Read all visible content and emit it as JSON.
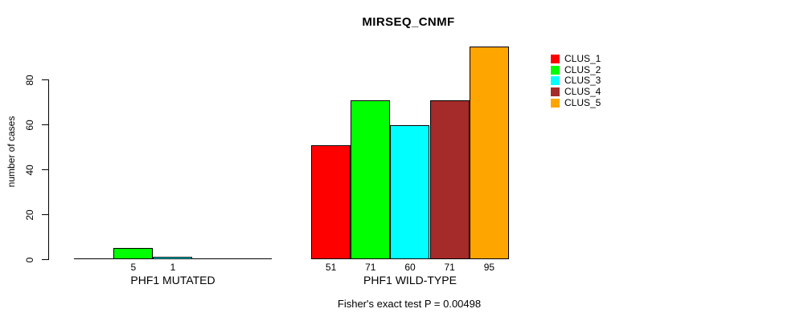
{
  "title": "MIRSEQ_CNMF",
  "footer": "Fisher's exact test P = 0.00498",
  "y_axis": {
    "label": "number of cases",
    "ticks": [
      0,
      20,
      40,
      60,
      80
    ]
  },
  "legend": {
    "entries": [
      {
        "label": "CLUS_1",
        "color": "#FF0000"
      },
      {
        "label": "CLUS_2",
        "color": "#00FF00"
      },
      {
        "label": "CLUS_3",
        "color": "#00FFFF"
      },
      {
        "label": "CLUS_4",
        "color": "#A52A2A"
      },
      {
        "label": "CLUS_5",
        "color": "#FFA500"
      }
    ]
  },
  "chart_data": {
    "type": "bar",
    "title": "MIRSEQ_CNMF",
    "xlabel": "",
    "ylabel": "number of cases",
    "categories": [
      "PHF1 MUTATED",
      "PHF1 WILD-TYPE"
    ],
    "series": [
      {
        "name": "CLUS_1",
        "color": "#FF0000",
        "values": [
          0,
          51
        ]
      },
      {
        "name": "CLUS_2",
        "color": "#00FF00",
        "values": [
          5,
          71
        ]
      },
      {
        "name": "CLUS_3",
        "color": "#00FFFF",
        "values": [
          1,
          60
        ]
      },
      {
        "name": "CLUS_4",
        "color": "#A52A2A",
        "values": [
          0,
          71
        ]
      },
      {
        "name": "CLUS_5",
        "color": "#FFA500",
        "values": [
          0,
          95
        ]
      }
    ],
    "bar_value_labels": {
      "PHF1 MUTATED": [
        null,
        5,
        1,
        null,
        null
      ],
      "PHF1 WILD-TYPE": [
        51,
        71,
        60,
        71,
        95
      ]
    },
    "ylim": [
      0,
      96
    ],
    "yticks": [
      0,
      20,
      40,
      60,
      80
    ],
    "grid": false,
    "legend_position": "top-right",
    "annotation": "Fisher's exact test P = 0.00498"
  }
}
